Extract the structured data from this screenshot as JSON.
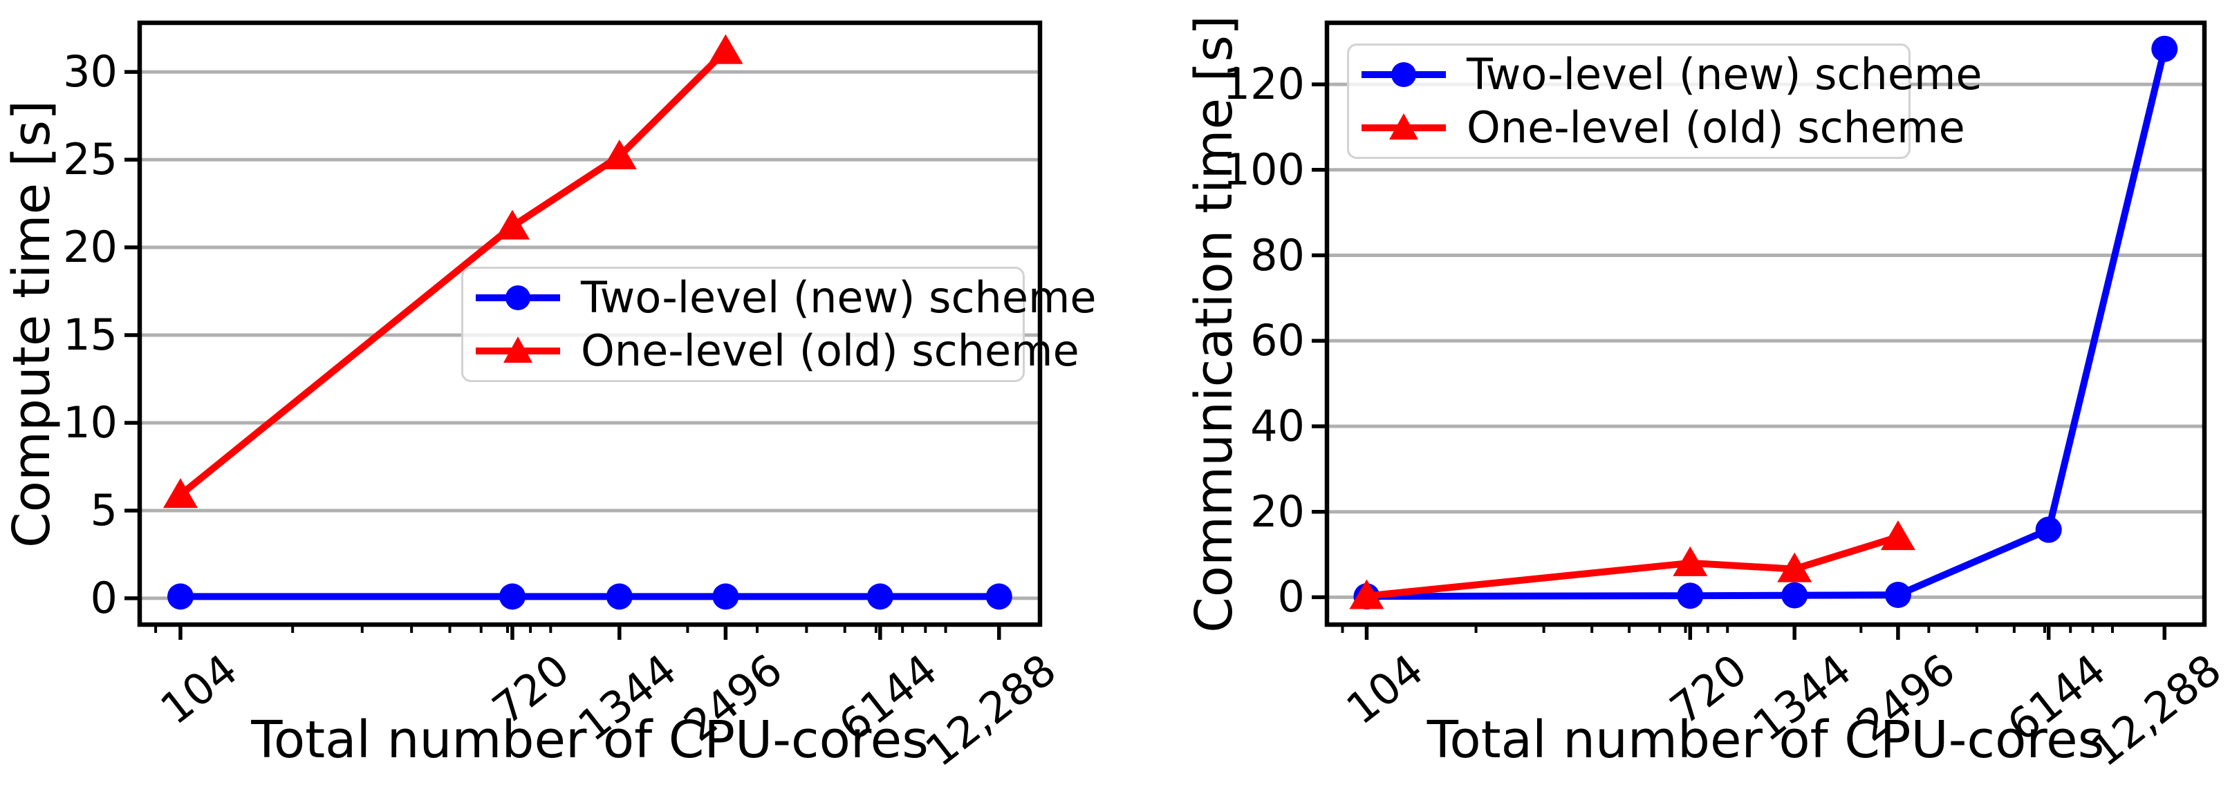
{
  "figure": {
    "background": "#ffffff",
    "accent_blue": "#0000ff",
    "accent_red": "#ff0000",
    "grid_color": "#b0b0b0",
    "spine_color": "#000000",
    "legend_border_color": "#d2d2d2"
  },
  "legend": {
    "entries": [
      {
        "label": "Two-level (new) scheme",
        "color": "#0000ff",
        "marker": "circle"
      },
      {
        "label": "One-level (old) scheme",
        "color": "#ff0000",
        "marker": "triangle-up"
      }
    ]
  },
  "chart_data": [
    {
      "type": "line",
      "title": "",
      "xlabel": "Total number of CPU-cores",
      "ylabel": "Compute time [s]",
      "x_scale": "log",
      "grid": true,
      "legend_position": "center-right",
      "xlim": [
        82,
        15600
      ],
      "ylim": [
        -1.5,
        32.8
      ],
      "yticks": [
        0,
        5,
        10,
        15,
        20,
        25,
        30
      ],
      "xticks": [
        104,
        720,
        1344,
        2496,
        6144,
        12288
      ],
      "xtick_labels": [
        "104",
        "720",
        "1344",
        "2496",
        "6144",
        "12,288"
      ],
      "series": [
        {
          "name": "Two-level (new) scheme",
          "color": "#0000ff",
          "marker": "circle",
          "x": [
            104,
            720,
            1344,
            2496,
            6144,
            12288
          ],
          "y": [
            0.1,
            0.1,
            0.1,
            0.1,
            0.1,
            0.1
          ]
        },
        {
          "name": "One-level (old) scheme",
          "color": "#ff0000",
          "marker": "triangle-up",
          "x": [
            104,
            720,
            1344,
            2496
          ],
          "y": [
            5.9,
            21.2,
            25.2,
            31.2
          ]
        }
      ]
    },
    {
      "type": "line",
      "title": "",
      "xlabel": "Total number of CPU-cores",
      "ylabel": "Communication time [s]",
      "x_scale": "log",
      "grid": true,
      "legend_position": "upper-left",
      "xlim": [
        82,
        15600
      ],
      "ylim": [
        -6.4,
        134.4
      ],
      "yticks": [
        0,
        20,
        40,
        60,
        80,
        100,
        120
      ],
      "xticks": [
        104,
        720,
        1344,
        2496,
        6144,
        12288
      ],
      "xtick_labels": [
        "104",
        "720",
        "1344",
        "2496",
        "6144",
        "12,288"
      ],
      "series": [
        {
          "name": "Two-level (new) scheme",
          "color": "#0000ff",
          "marker": "circle",
          "x": [
            104,
            720,
            1344,
            2496,
            6144,
            12288
          ],
          "y": [
            0.2,
            0.35,
            0.45,
            0.55,
            15.8,
            128.3
          ]
        },
        {
          "name": "One-level (old) scheme",
          "color": "#ff0000",
          "marker": "triangle-up",
          "x": [
            104,
            720,
            1344,
            2496
          ],
          "y": [
            0.3,
            8.0,
            6.6,
            14.1
          ]
        }
      ]
    }
  ]
}
